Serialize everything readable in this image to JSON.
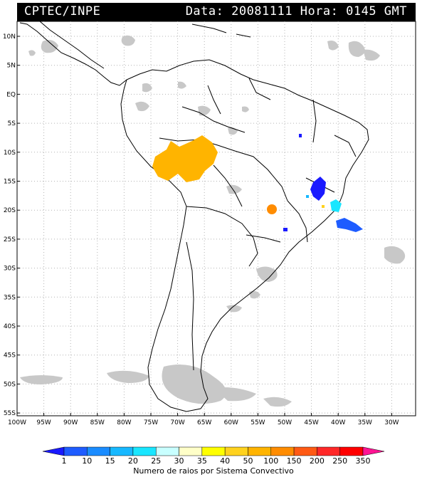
{
  "header": {
    "source": "CPTEC/INPE",
    "datetime": "Data: 20081111  Hora: 0145 GMT"
  },
  "axes": {
    "latitude_labels": [
      "10N",
      "5N",
      "EQ",
      "5S",
      "10S",
      "15S",
      "20S",
      "25S",
      "30S",
      "35S",
      "40S",
      "45S",
      "50S",
      "55S"
    ],
    "longitude_labels": [
      "100W",
      "95W",
      "90W",
      "85W",
      "80W",
      "75W",
      "70W",
      "65W",
      "60W",
      "55W",
      "50W",
      "45W",
      "40W",
      "35W",
      "30W"
    ]
  },
  "colorbar": {
    "values": [
      "1",
      "10",
      "15",
      "20",
      "25",
      "30",
      "35",
      "40",
      "50",
      "100",
      "150",
      "200",
      "250",
      "350"
    ],
    "colors": [
      "#1a1aff",
      "#1e5cff",
      "#1a8cff",
      "#17b8ff",
      "#19e6ff",
      "#c8ffff",
      "#ffffc8",
      "#ffff00",
      "#ffd21e",
      "#ffb400",
      "#ff8c00",
      "#ff5a14",
      "#ff2828",
      "#ff0000",
      "#ff1493"
    ],
    "caption": "Numero de raios por Sistema Convectivo"
  },
  "colors": {
    "cloud_gray": "#c8c8c8",
    "coast": "#000000",
    "grid": "#b4b4b4"
  }
}
